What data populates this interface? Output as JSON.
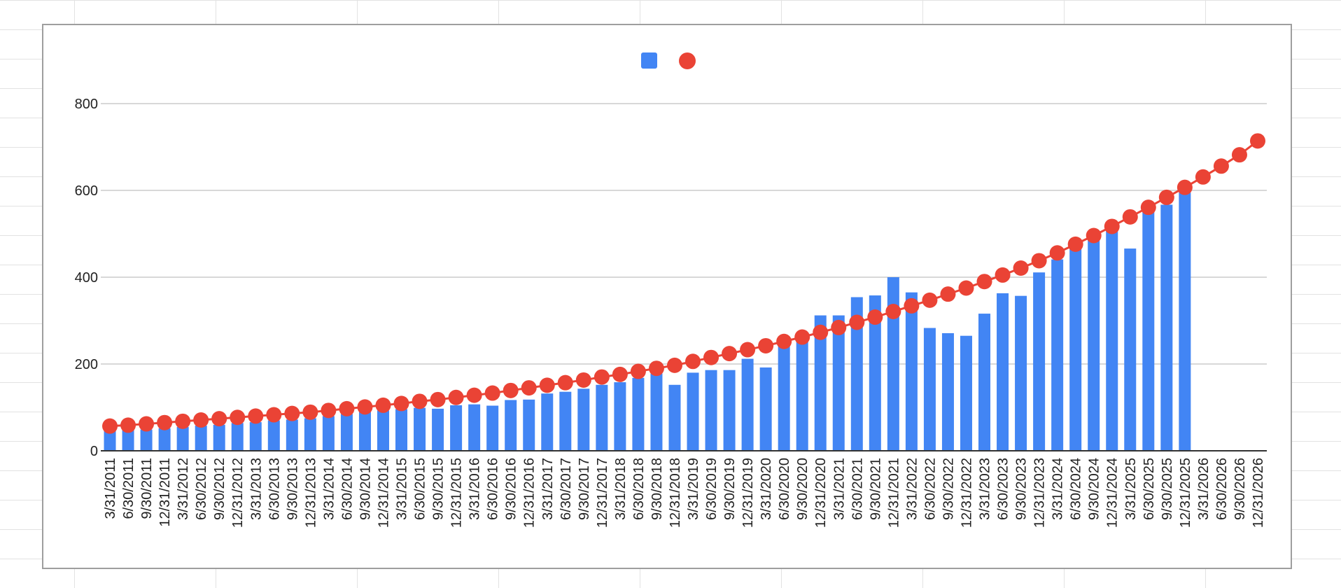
{
  "chart_data": {
    "type": "bar",
    "title": "",
    "xlabel": "",
    "ylabel": "",
    "ylim": [
      0,
      900
    ],
    "yticks": [
      0,
      200,
      400,
      600,
      800
    ],
    "grid": true,
    "legend_position": "top",
    "categories": [
      "3/31/2011",
      "6/30/2011",
      "9/30/2011",
      "12/31/2011",
      "3/31/2012",
      "6/30/2012",
      "9/30/2012",
      "12/31/2012",
      "3/31/2013",
      "6/30/2013",
      "9/30/2013",
      "12/31/2013",
      "3/31/2014",
      "6/30/2014",
      "9/30/2014",
      "12/31/2014",
      "3/31/2015",
      "6/30/2015",
      "9/30/2015",
      "12/31/2015",
      "3/31/2016",
      "6/30/2016",
      "9/30/2016",
      "12/31/2016",
      "3/31/2017",
      "6/30/2017",
      "9/30/2017",
      "12/31/2017",
      "3/31/2018",
      "6/30/2018",
      "9/30/2018",
      "12/31/2018",
      "3/31/2019",
      "6/30/2019",
      "9/30/2019",
      "12/31/2019",
      "3/31/2020",
      "6/30/2020",
      "9/30/2020",
      "12/31/2020",
      "3/31/2021",
      "6/30/2021",
      "9/30/2021",
      "12/31/2021",
      "3/31/2022",
      "6/30/2022",
      "9/30/2022",
      "12/31/2022",
      "3/31/2023",
      "6/30/2023",
      "9/30/2023",
      "12/31/2023",
      "3/31/2024",
      "6/30/2024",
      "9/30/2024",
      "12/31/2024",
      "3/31/2025",
      "6/30/2025",
      "9/30/2025",
      "12/31/2025",
      "3/31/2026",
      "6/30/2026",
      "9/30/2026",
      "12/31/2026"
    ],
    "series": [
      {
        "type": "bar",
        "color": "#4285f4",
        "values": [
          50,
          48,
          49,
          52,
          55,
          58,
          60,
          64,
          66,
          70,
          72,
          75,
          80,
          85,
          90,
          93,
          96,
          99,
          97,
          105,
          107,
          104,
          117,
          118,
          132,
          136,
          143,
          152,
          158,
          168,
          178,
          152,
          180,
          186,
          186,
          212,
          192,
          245,
          258,
          312,
          312,
          354,
          358,
          400,
          365,
          283,
          271,
          265,
          316,
          363,
          357,
          411,
          441,
          471,
          487,
          510,
          466,
          550,
          567,
          595,
          null,
          null,
          null,
          null
        ]
      },
      {
        "type": "line-markers",
        "color": "#ea4335",
        "values": [
          57,
          59,
          62,
          65,
          68,
          71,
          74,
          77,
          80,
          83,
          86,
          89,
          93,
          97,
          101,
          105,
          109,
          114,
          118,
          123,
          128,
          133,
          139,
          145,
          151,
          157,
          163,
          170,
          176,
          183,
          190,
          197,
          206,
          215,
          224,
          233,
          242,
          252,
          262,
          273,
          284,
          296,
          308,
          321,
          334,
          347,
          361,
          375,
          390,
          405,
          421,
          438,
          456,
          476,
          496,
          517,
          539,
          561,
          584,
          607,
          631,
          656,
          682,
          714
        ]
      }
    ]
  }
}
